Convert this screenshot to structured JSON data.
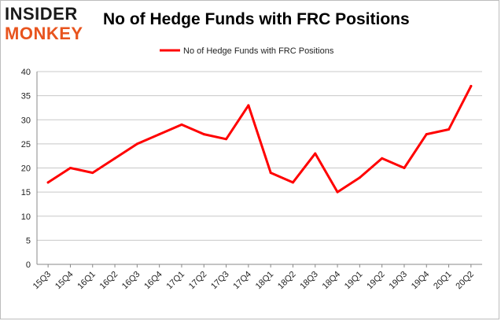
{
  "logo": {
    "line1": "INSIDER",
    "line2": "MONKEY"
  },
  "colors": {
    "series": "#ff0000",
    "grid": "#c8c8c8",
    "axis": "#888888",
    "logo_accent": "#e8541e"
  },
  "chart_data": {
    "type": "line",
    "title": "No of Hedge Funds with FRC Positions",
    "legend": {
      "position": "top-center",
      "label": "No of Hedge Funds with FRC Positions"
    },
    "categories": [
      "15Q3",
      "15Q4",
      "16Q1",
      "16Q2",
      "16Q3",
      "16Q4",
      "17Q1",
      "17Q2",
      "17Q3",
      "17Q4",
      "18Q1",
      "18Q2",
      "18Q3",
      "18Q4",
      "19Q1",
      "19Q2",
      "19Q3",
      "19Q4",
      "20Q1",
      "20Q2"
    ],
    "series": [
      {
        "name": "No of Hedge Funds with FRC Positions",
        "values": [
          17,
          20,
          19,
          22,
          25,
          27,
          29,
          27,
          26,
          33,
          19,
          17,
          23,
          15,
          18,
          22,
          20,
          27,
          28,
          37
        ]
      }
    ],
    "ylim": [
      0,
      40
    ],
    "yticks": [
      0,
      5,
      10,
      15,
      20,
      25,
      30,
      35,
      40
    ],
    "grid": true
  }
}
